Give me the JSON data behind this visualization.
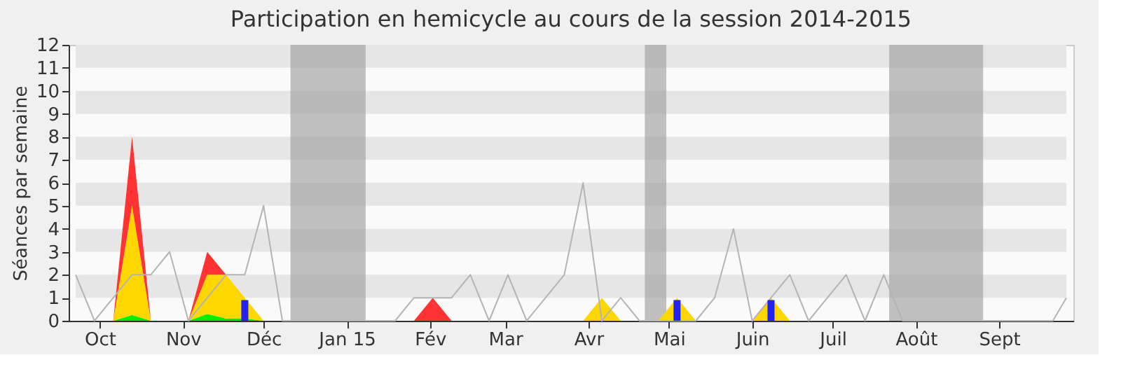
{
  "chart_data": {
    "type": "area",
    "title": "Participation en hemicycle au cours de la session 2014-2015",
    "ylabel": "Séances par semaine",
    "stacked": true,
    "x": [
      "2014-09-22",
      "2014-09-29",
      "2014-10-06",
      "2014-10-13",
      "2014-10-20",
      "2014-10-27",
      "2014-11-03",
      "2014-11-10",
      "2014-11-17",
      "2014-11-24",
      "2014-12-01",
      "2014-12-08",
      "2014-12-15",
      "2014-12-22",
      "2014-12-29",
      "2015-01-05",
      "2015-01-12",
      "2015-01-19",
      "2015-01-26",
      "2015-02-02",
      "2015-02-09",
      "2015-02-16",
      "2015-02-23",
      "2015-03-02",
      "2015-03-09",
      "2015-03-16",
      "2015-03-23",
      "2015-03-30",
      "2015-04-06",
      "2015-04-13",
      "2015-04-20",
      "2015-04-27",
      "2015-05-04",
      "2015-05-11",
      "2015-05-18",
      "2015-05-25",
      "2015-06-01",
      "2015-06-08",
      "2015-06-15",
      "2015-06-22",
      "2015-06-29",
      "2015-07-06",
      "2015-07-13",
      "2015-07-20",
      "2015-07-27",
      "2015-08-03",
      "2015-08-10",
      "2015-08-17",
      "2015-08-24",
      "2015-08-31",
      "2015-09-07",
      "2015-09-14",
      "2015-09-21"
    ],
    "series": [
      {
        "color": "#00ee00",
        "values": [
          0,
          0,
          0,
          0.25,
          0,
          0,
          0,
          0.3,
          0.1,
          0.1,
          0,
          0,
          0,
          0,
          0,
          0,
          0,
          0,
          0,
          0,
          0,
          0,
          0,
          0,
          0,
          0,
          0,
          0,
          0,
          0,
          0,
          0,
          0,
          0,
          0,
          0,
          0,
          0,
          0,
          0,
          0,
          0,
          0,
          0,
          0,
          0,
          0,
          0,
          0,
          0,
          0,
          0,
          0
        ]
      },
      {
        "color": "#ffd700",
        "values": [
          0,
          0,
          0,
          4.75,
          0,
          0,
          0,
          1.7,
          1.9,
          0.9,
          0,
          0,
          0,
          0,
          0,
          0,
          0,
          0,
          0,
          0,
          0,
          0,
          0,
          0,
          0,
          0,
          0,
          0,
          1,
          0,
          0,
          0,
          1,
          0,
          0,
          0,
          0,
          1,
          0,
          0,
          0,
          0,
          0,
          0,
          0,
          0,
          0,
          0,
          0,
          0,
          0,
          0,
          0
        ]
      },
      {
        "color": "#ff3333",
        "values": [
          0,
          0,
          0,
          3,
          0,
          0,
          0,
          1,
          0,
          0,
          0,
          0,
          0,
          0,
          0,
          0,
          0,
          0,
          0,
          1,
          0,
          0,
          0,
          0,
          0,
          0,
          0,
          0,
          0,
          0,
          0,
          0,
          0,
          0,
          0,
          0,
          0,
          0,
          0,
          0,
          0,
          0,
          0,
          0,
          0,
          0,
          0,
          0,
          0,
          0,
          0,
          0,
          0
        ]
      },
      {
        "type": "line",
        "color": "#b4b4b4",
        "x": [
          "2014-09-22",
          "2014-09-29",
          "2014-10-06",
          "2014-10-13",
          "2014-10-20",
          "2014-10-27",
          "2014-11-03",
          "2014-11-10",
          "2014-11-17",
          "2014-11-24",
          "2014-12-01",
          "2014-12-08",
          "2014-12-15",
          "2014-12-22",
          "2014-12-29",
          "2015-01-05",
          "2015-01-12",
          "2015-01-19",
          "2015-01-26",
          "2015-02-02",
          "2015-02-09",
          "2015-02-16",
          "2015-02-23",
          "2015-03-02",
          "2015-03-09",
          "2015-03-16",
          "2015-03-23",
          "2015-03-30",
          "2015-04-06",
          "2015-04-13",
          "2015-04-20",
          "2015-04-27",
          "2015-05-04",
          "2015-05-11",
          "2015-05-18",
          "2015-05-25",
          "2015-06-01",
          "2015-06-08",
          "2015-06-15",
          "2015-06-22",
          "2015-06-29",
          "2015-07-06",
          "2015-07-13",
          "2015-07-20",
          "2015-07-27",
          "2015-08-03",
          "2015-08-10",
          "2015-08-17",
          "2015-08-24",
          "2015-08-31",
          "2015-09-07",
          "2015-09-14",
          "2015-09-21",
          "2015-09-26"
        ],
        "values": [
          2,
          0,
          1,
          2,
          2,
          3,
          0,
          1,
          2,
          2,
          5,
          0,
          0,
          0,
          0,
          0,
          0,
          0,
          1,
          1,
          1,
          2,
          0,
          2,
          0,
          1,
          2,
          6,
          0,
          1,
          0,
          0,
          0,
          0,
          1,
          4,
          0,
          1,
          2,
          0,
          1,
          2,
          0,
          2,
          0,
          0,
          0,
          0,
          0,
          0,
          0,
          0,
          0,
          1
        ]
      },
      {
        "type": "bar",
        "color": "#2222ee",
        "x": [
          "2014-11-24",
          "2015-05-04",
          "2015-06-08"
        ],
        "values": [
          0.9,
          0.9,
          0.9
        ]
      }
    ],
    "xlim": [
      "2014-09-22",
      "2015-09-26"
    ],
    "xticks": [
      {
        "value": "2014-10-01",
        "label": "Oct"
      },
      {
        "value": "2014-11-01",
        "label": "Nov"
      },
      {
        "value": "2014-12-01",
        "label": "Déc"
      },
      {
        "value": "2015-01-01",
        "label": "Jan 15"
      },
      {
        "value": "2015-02-01",
        "label": "Fév"
      },
      {
        "value": "2015-03-01",
        "label": "Mar"
      },
      {
        "value": "2015-04-01",
        "label": "Avr"
      },
      {
        "value": "2015-05-01",
        "label": "Mai"
      },
      {
        "value": "2015-06-01",
        "label": "Juin"
      },
      {
        "value": "2015-07-01",
        "label": "Juil"
      },
      {
        "value": "2015-08-01",
        "label": "Août"
      },
      {
        "value": "2015-09-01",
        "label": "Sept"
      }
    ],
    "ylim": [
      0,
      12
    ],
    "yticks": [
      0,
      1,
      2,
      3,
      4,
      5,
      6,
      7,
      8,
      9,
      10,
      11,
      12
    ],
    "bands": [
      {
        "axis": "y",
        "from": 1,
        "to": 2,
        "color": "#e6e6e6"
      },
      {
        "axis": "y",
        "from": 3,
        "to": 4,
        "color": "#e6e6e6"
      },
      {
        "axis": "y",
        "from": 5,
        "to": 6,
        "color": "#e6e6e6"
      },
      {
        "axis": "y",
        "from": 7,
        "to": 8,
        "color": "#e6e6e6"
      },
      {
        "axis": "y",
        "from": 9,
        "to": 10,
        "color": "#e6e6e6"
      },
      {
        "axis": "y",
        "from": 11,
        "to": 12,
        "color": "#e6e6e6"
      },
      {
        "axis": "x",
        "from": "2014-12-11",
        "to": "2015-01-08",
        "color": "#999999"
      },
      {
        "axis": "x",
        "from": "2015-04-22",
        "to": "2015-04-30",
        "color": "#999999"
      },
      {
        "axis": "x",
        "from": "2015-07-22",
        "to": "2015-08-26",
        "color": "#999999"
      }
    ],
    "grid": false
  }
}
